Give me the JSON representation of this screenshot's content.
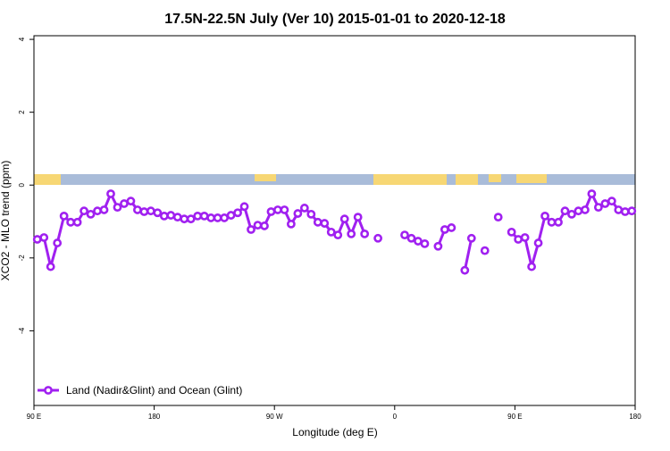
{
  "chart_data": {
    "type": "line",
    "title": "17.5N-22.5N July (Ver 10)   2015-01-01 to 2020-12-18",
    "x_label": "Longitude (deg E)",
    "y_label": "XCO2 - MLO trend (ppm)",
    "x": [
      92.5,
      97.5,
      102.5,
      107.5,
      112.5,
      117.5,
      122.5,
      127.5,
      132.5,
      137.5,
      142.5,
      147.5,
      152.5,
      157.5,
      162.5,
      167.5,
      172.5,
      177.5,
      182.5,
      187.5,
      192.5,
      197.5,
      202.5,
      207.5,
      212.5,
      217.5,
      222.5,
      227.5,
      232.5,
      237.5,
      242.5,
      247.5,
      252.5,
      257.5,
      262.5,
      267.5,
      272.5,
      277.5,
      282.5,
      287.5,
      292.5,
      297.5,
      302.5,
      307.5,
      312.5,
      317.5,
      322.5,
      327.5,
      332.5,
      337.5,
      342.5,
      347.5,
      352.5,
      357.5,
      362.5,
      367.5,
      372.5,
      377.5,
      382.5,
      387.5,
      392.5,
      397.5,
      402.5,
      407.5,
      412.5,
      417.5,
      422.5,
      427.5,
      432.5,
      437.5,
      442.5,
      447.5,
      452.5,
      457.5,
      462.5,
      467.5,
      472.5,
      477.5,
      482.5,
      487.5,
      492.5,
      497.5,
      502.5,
      507.5,
      512.5,
      517.5,
      522.5,
      527.5,
      532.5,
      537.5
    ],
    "series": [
      {
        "name": "Land (Nadir&Glint) and Ocean (Glint)",
        "color": "#a020f0",
        "values": [
          -1.49,
          -1.44,
          -2.24,
          -1.59,
          -0.85,
          -1.02,
          -1.02,
          -0.71,
          -0.8,
          -0.71,
          -0.68,
          -0.24,
          -0.61,
          -0.51,
          -0.44,
          -0.68,
          -0.73,
          -0.71,
          -0.76,
          -0.85,
          -0.83,
          -0.88,
          -0.93,
          -0.93,
          -0.85,
          -0.85,
          -0.9,
          -0.9,
          -0.9,
          -0.83,
          -0.76,
          -0.59,
          -1.22,
          -1.1,
          -1.12,
          -0.73,
          -0.68,
          -0.68,
          -1.07,
          -0.78,
          -0.63,
          -0.8,
          -1.02,
          -1.05,
          -1.29,
          -1.37,
          -0.93,
          -1.34,
          -0.88,
          -1.34,
          null,
          -1.46,
          null,
          null,
          null,
          -1.37,
          -1.46,
          -1.54,
          -1.61,
          null,
          -1.68,
          -1.22,
          -1.17,
          null,
          -2.34,
          -1.46,
          null,
          -1.8,
          null,
          -0.88,
          null,
          -1.29,
          -1.49,
          -1.44,
          -2.24,
          -1.59,
          -0.85,
          -1.02,
          -1.02,
          -0.71,
          -0.8,
          -0.71,
          -0.68,
          -0.24,
          -0.61,
          -0.51,
          -0.44,
          -0.68,
          -0.73,
          -0.71
        ]
      }
    ],
    "xlim": [
      90,
      540
    ],
    "xticks": [
      {
        "value": 90,
        "label": "90 E"
      },
      180,
      {
        "value": 270,
        "label": "90 W"
      },
      {
        "value": 360,
        "label": "0"
      },
      {
        "value": 450,
        "label": "90 E"
      },
      {
        "value": 540,
        "label": "180"
      }
    ],
    "ylim": [
      -6.05,
      4.1
    ],
    "yticks": [
      -4,
      -2,
      0,
      2,
      4
    ],
    "legend": "bottom-left"
  }
}
